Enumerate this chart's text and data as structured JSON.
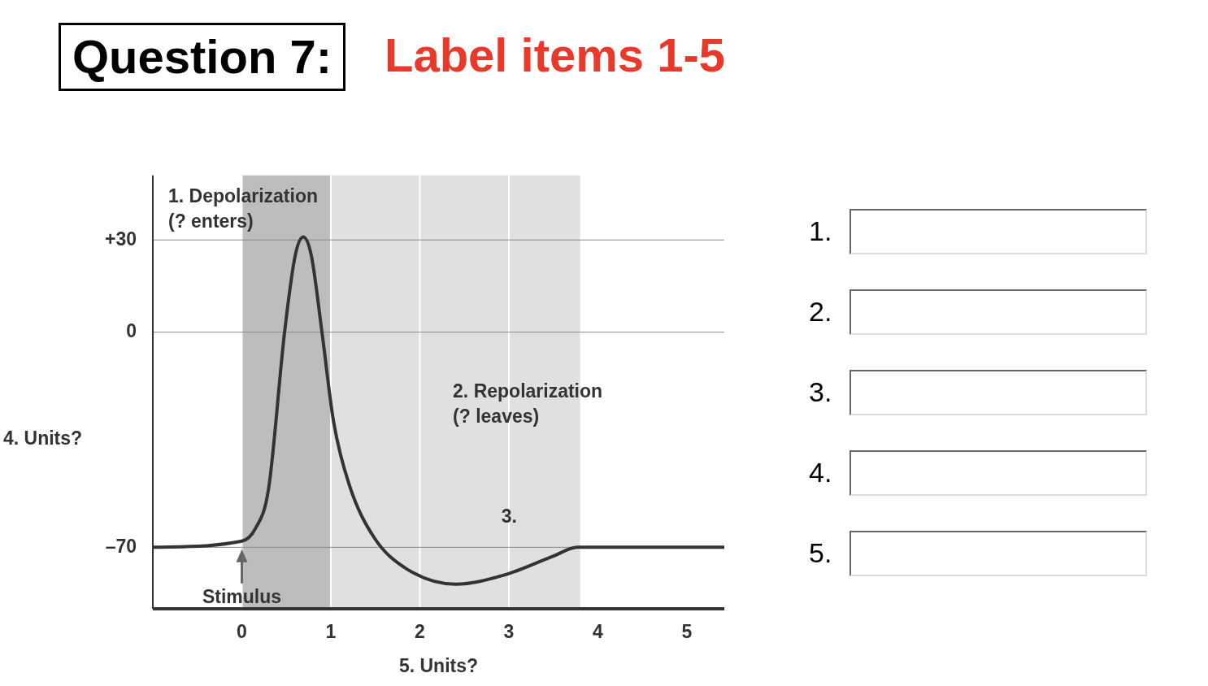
{
  "chart_data": [
    {
      "type": "line",
      "title": "Question 7:",
      "subtitle": "Label items 1-5",
      "xlabel": "5. Units?",
      "ylabel": "4. Units?",
      "x": [
        -1,
        0,
        0.15,
        0.3,
        0.48,
        0.6,
        0.69,
        0.78,
        0.9,
        1.03,
        1.21,
        1.49,
        1.85,
        2.4,
        2.95,
        3.49,
        3.77,
        5.42
      ],
      "series": [
        {
          "color": "#333333",
          "values": [
            -70,
            -68,
            -64,
            -51,
            0,
            25,
            31,
            25,
            0,
            -29,
            -50,
            -67,
            -77,
            -82,
            -79,
            -73,
            -70,
            -70
          ]
        }
      ],
      "xlim": [
        -1,
        5.42
      ],
      "ylim": [
        -90,
        51
      ],
      "xticks": [
        0,
        1,
        2,
        3,
        4,
        5
      ],
      "yticks": [
        {
          "value": 30,
          "label": "+30"
        },
        0,
        {
          "value": -70,
          "label": "–70"
        }
      ],
      "grid": true,
      "legend": false,
      "marker": "none",
      "line_style": "solid",
      "bands": [
        {
          "axis": "x",
          "from": 0,
          "to": 1,
          "color": "#bdbdbd"
        },
        {
          "axis": "x",
          "from": 1,
          "to": 3.8,
          "color": "#e0e0e0"
        }
      ],
      "annotations": [
        "1. Depolarization\n(? enters)",
        "2. Repolarization\n(? leaves)",
        "3.",
        {
          "text": "Stimulus",
          "x": 0,
          "y": -86.5
        },
        "1.",
        "2.",
        "3.",
        "4.",
        "5."
      ]
    }
  ]
}
